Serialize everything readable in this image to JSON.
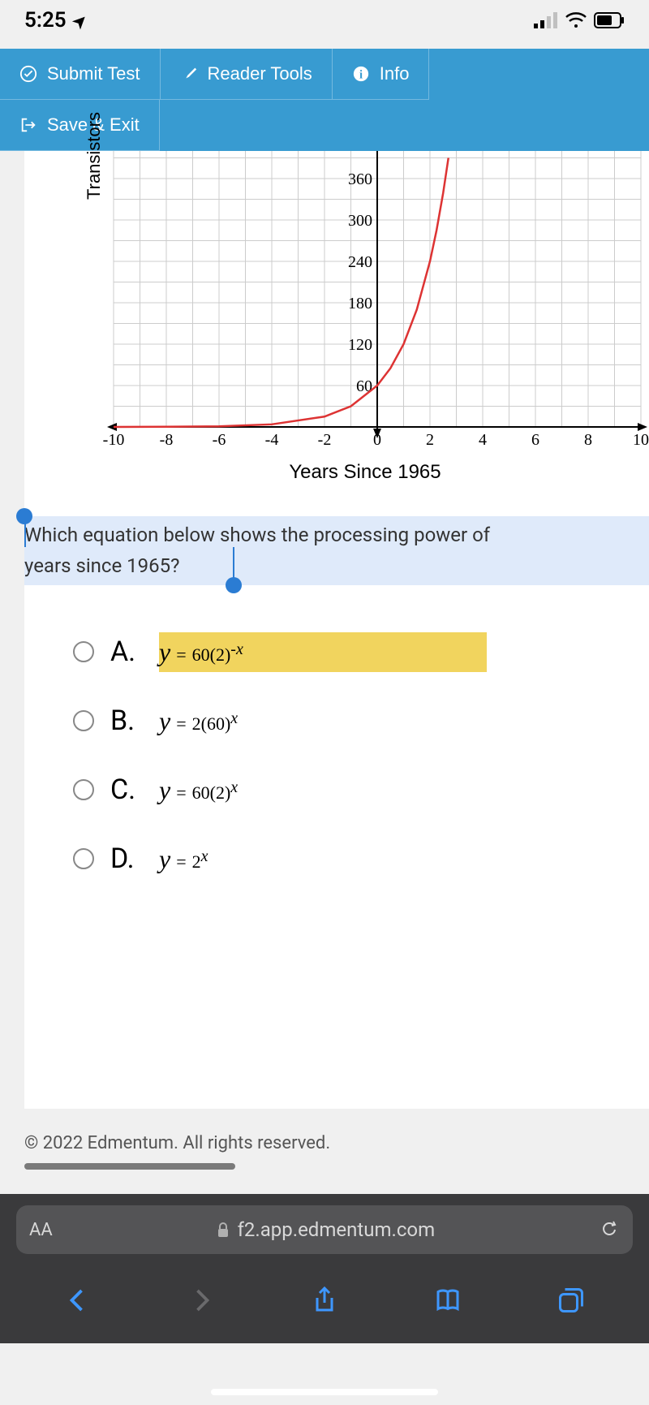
{
  "status": {
    "time": "5:25",
    "signal_bars": 3,
    "battery_pct": 60
  },
  "toolbar": {
    "submit": "Submit Test",
    "reader": "Reader Tools",
    "info": "Info",
    "save_exit": "Save & Exit",
    "bg_color": "#389bd1"
  },
  "chart": {
    "type": "line",
    "ylabel": "Transistors",
    "xlabel": "Years Since 1965",
    "x_ticks": [
      -10,
      -8,
      -6,
      -4,
      -2,
      0,
      2,
      4,
      6,
      8,
      10
    ],
    "y_ticks": [
      60,
      120,
      180,
      240,
      300,
      360
    ],
    "xlim": [
      -10,
      10
    ],
    "ylim": [
      0,
      400
    ],
    "grid_color": "#cccccc",
    "axis_color": "#000000",
    "curve_color": "#dd3333",
    "curve_points": [
      [
        -10,
        0.06
      ],
      [
        -8,
        0.23
      ],
      [
        -6,
        0.94
      ],
      [
        -4,
        3.75
      ],
      [
        -2,
        15
      ],
      [
        -1,
        30
      ],
      [
        0,
        60
      ],
      [
        0.5,
        85
      ],
      [
        1,
        120
      ],
      [
        1.5,
        170
      ],
      [
        2,
        240
      ],
      [
        2.25,
        285
      ],
      [
        2.5,
        339
      ],
      [
        2.7,
        390
      ]
    ],
    "font_size": 20
  },
  "question": {
    "text_line1": "Which equation below shows the processing power of",
    "text_line2": "years since 1965?",
    "highlight_bg": "#dfeafa",
    "selection_color": "#2b7cd3"
  },
  "options": {
    "highlight_color": "#f1d45e",
    "items": [
      {
        "letter": "A.",
        "prefix": "y",
        "eq": "=",
        "coef": "60(2)",
        "exp": "-x",
        "highlighted": true
      },
      {
        "letter": "B.",
        "prefix": "y",
        "eq": "=",
        "coef": "2(60)",
        "exp": "x",
        "highlighted": false
      },
      {
        "letter": "C.",
        "prefix": "y",
        "eq": "=",
        "coef": "60(2)",
        "exp": "x",
        "highlighted": false
      },
      {
        "letter": "D.",
        "prefix": "y",
        "eq": "=",
        "coef": "2",
        "exp": "x",
        "highlighted": false
      }
    ]
  },
  "footer": {
    "copyright": "© 2022 Edmentum. All rights reserved."
  },
  "browser": {
    "aa": "AA",
    "url": "f2.app.edmentum.com",
    "pill_bg": "#545456",
    "bar_bg": "#3a3a3c"
  }
}
